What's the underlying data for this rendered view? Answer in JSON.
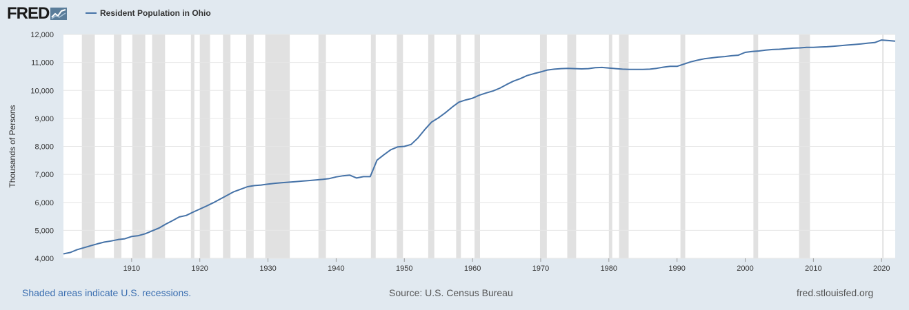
{
  "brand": {
    "logo_text": "FRED",
    "logo_badge_icon": "chart-line-icon"
  },
  "legend": {
    "series_label": "Resident Population in Ohio",
    "color": "#4572a7"
  },
  "footer": {
    "recession_note": "Shaded areas indicate U.S. recessions.",
    "source": "Source: U.S. Census Bureau",
    "site": "fred.stlouisfed.org"
  },
  "colors": {
    "background": "#e1e9f0",
    "plot": "#ffffff",
    "recession": "#e1e1e1",
    "grid": "#e6e6e6",
    "line": "#4572a7"
  },
  "chart_data": {
    "type": "line",
    "title": "",
    "xlabel": "",
    "ylabel": "Thousands of Persons",
    "xlim": [
      1900,
      2022
    ],
    "ylim": [
      4000,
      12000
    ],
    "grid": true,
    "legend_position": "top-left",
    "x_ticks": [
      1910,
      1920,
      1930,
      1940,
      1950,
      1960,
      1970,
      1980,
      1990,
      2000,
      2010,
      2020
    ],
    "y_ticks": [
      4000,
      5000,
      6000,
      7000,
      8000,
      9000,
      10000,
      11000,
      12000
    ],
    "y_tick_labels": [
      "4,000",
      "5,000",
      "6,000",
      "7,000",
      "8,000",
      "9,000",
      "10,000",
      "11,000",
      "12,000"
    ],
    "recessions": [
      [
        1902.7,
        1904.6
      ],
      [
        1907.4,
        1908.5
      ],
      [
        1910.1,
        1912.0
      ],
      [
        1913.0,
        1914.9
      ],
      [
        1918.7,
        1919.2
      ],
      [
        1920.0,
        1921.5
      ],
      [
        1923.4,
        1924.5
      ],
      [
        1926.8,
        1927.9
      ],
      [
        1929.6,
        1933.2
      ],
      [
        1937.4,
        1938.5
      ],
      [
        1945.1,
        1945.8
      ],
      [
        1948.9,
        1949.8
      ],
      [
        1953.5,
        1954.4
      ],
      [
        1957.6,
        1958.3
      ],
      [
        1960.3,
        1961.1
      ],
      [
        1969.9,
        1970.9
      ],
      [
        1973.9,
        1975.2
      ],
      [
        1980.0,
        1980.5
      ],
      [
        1981.5,
        1982.9
      ],
      [
        1990.5,
        1991.2
      ],
      [
        2001.2,
        2001.9
      ],
      [
        2007.9,
        2009.5
      ],
      [
        2020.1,
        2020.3
      ]
    ],
    "series": [
      {
        "name": "Resident Population in Ohio",
        "x": [
          1900,
          1901,
          1902,
          1903,
          1904,
          1905,
          1906,
          1907,
          1908,
          1909,
          1910,
          1911,
          1912,
          1913,
          1914,
          1915,
          1916,
          1917,
          1918,
          1919,
          1920,
          1921,
          1922,
          1923,
          1924,
          1925,
          1926,
          1927,
          1928,
          1929,
          1930,
          1931,
          1932,
          1933,
          1934,
          1935,
          1936,
          1937,
          1938,
          1939,
          1940,
          1941,
          1942,
          1943,
          1944,
          1945,
          1946,
          1947,
          1948,
          1949,
          1950,
          1951,
          1952,
          1953,
          1954,
          1955,
          1956,
          1957,
          1958,
          1959,
          1960,
          1961,
          1962,
          1963,
          1964,
          1965,
          1966,
          1967,
          1968,
          1969,
          1970,
          1971,
          1972,
          1973,
          1974,
          1975,
          1976,
          1977,
          1978,
          1979,
          1980,
          1981,
          1982,
          1983,
          1984,
          1985,
          1986,
          1987,
          1988,
          1989,
          1990,
          1991,
          1992,
          1993,
          1994,
          1995,
          1996,
          1997,
          1998,
          1999,
          2000,
          2001,
          2002,
          2003,
          2004,
          2005,
          2006,
          2007,
          2008,
          2009,
          2010,
          2011,
          2012,
          2013,
          2014,
          2015,
          2016,
          2017,
          2018,
          2019,
          2020,
          2021,
          2022
        ],
        "values": [
          4160,
          4210,
          4310,
          4380,
          4450,
          4520,
          4580,
          4620,
          4670,
          4700,
          4780,
          4810,
          4880,
          4980,
          5080,
          5220,
          5350,
          5480,
          5530,
          5650,
          5760,
          5870,
          5990,
          6120,
          6250,
          6380,
          6470,
          6560,
          6600,
          6620,
          6650,
          6680,
          6700,
          6720,
          6740,
          6760,
          6780,
          6800,
          6820,
          6850,
          6910,
          6950,
          6970,
          6870,
          6920,
          6920,
          7510,
          7700,
          7880,
          7980,
          8000,
          8070,
          8300,
          8600,
          8870,
          9020,
          9200,
          9400,
          9580,
          9660,
          9720,
          9830,
          9910,
          9980,
          10080,
          10210,
          10330,
          10420,
          10530,
          10600,
          10660,
          10730,
          10760,
          10780,
          10790,
          10780,
          10770,
          10780,
          10810,
          10820,
          10800,
          10780,
          10760,
          10750,
          10750,
          10750,
          10760,
          10790,
          10830,
          10860,
          10860,
          10940,
          11020,
          11080,
          11130,
          11160,
          11190,
          11210,
          11240,
          11260,
          11360,
          11390,
          11410,
          11440,
          11460,
          11470,
          11490,
          11510,
          11520,
          11540,
          11540,
          11550,
          11560,
          11580,
          11600,
          11620,
          11640,
          11660,
          11690,
          11710,
          11800,
          11780,
          11760
        ]
      }
    ]
  }
}
